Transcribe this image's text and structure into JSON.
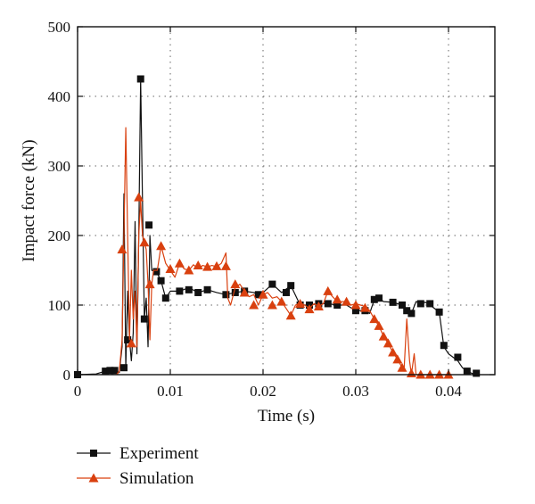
{
  "chart_data": {
    "type": "line",
    "xlabel": "Time (s)",
    "ylabel": "Impact force (kN)",
    "xlim": [
      0,
      0.045
    ],
    "ylim": [
      0,
      500
    ],
    "x_ticks": [
      0,
      0.01,
      0.02,
      0.03,
      0.04
    ],
    "x_tick_labels": [
      "0",
      "0.01",
      "0.02",
      "0.03",
      "0.04"
    ],
    "y_ticks": [
      0,
      100,
      200,
      300,
      400,
      500
    ],
    "y_tick_labels": [
      "0",
      "100",
      "200",
      "300",
      "400",
      "500"
    ],
    "grid": true,
    "legend_position": "bottom-left, below plot",
    "series": [
      {
        "name": "Experiment",
        "color": "#111111",
        "marker": "square",
        "line_points": [
          [
            0,
            0
          ],
          [
            0.002,
            1
          ],
          [
            0.003,
            5
          ],
          [
            0.0035,
            6
          ],
          [
            0.004,
            6
          ],
          [
            0.0045,
            3
          ],
          [
            0.0048,
            40
          ],
          [
            0.005,
            260
          ],
          [
            0.0052,
            10
          ],
          [
            0.0054,
            120
          ],
          [
            0.0056,
            50
          ],
          [
            0.0058,
            20
          ],
          [
            0.006,
            60
          ],
          [
            0.0062,
            220
          ],
          [
            0.0064,
            30
          ],
          [
            0.0066,
            200
          ],
          [
            0.0068,
            425
          ],
          [
            0.007,
            250
          ],
          [
            0.0072,
            80
          ],
          [
            0.0074,
            110
          ],
          [
            0.0076,
            40
          ],
          [
            0.0078,
            200
          ],
          [
            0.008,
            150
          ],
          [
            0.0085,
            148
          ],
          [
            0.009,
            135
          ],
          [
            0.0095,
            110
          ],
          [
            0.01,
            120
          ],
          [
            0.011,
            120
          ],
          [
            0.012,
            125
          ],
          [
            0.013,
            118
          ],
          [
            0.014,
            122
          ],
          [
            0.015,
            118
          ],
          [
            0.016,
            115
          ],
          [
            0.017,
            118
          ],
          [
            0.018,
            120
          ],
          [
            0.019,
            118
          ],
          [
            0.0195,
            115
          ],
          [
            0.02,
            118
          ],
          [
            0.021,
            130
          ],
          [
            0.022,
            118
          ],
          [
            0.023,
            128
          ],
          [
            0.024,
            100
          ],
          [
            0.025,
            100
          ],
          [
            0.026,
            102
          ],
          [
            0.027,
            102
          ],
          [
            0.028,
            100
          ],
          [
            0.029,
            100
          ],
          [
            0.03,
            92
          ],
          [
            0.031,
            92
          ],
          [
            0.0315,
            88
          ],
          [
            0.032,
            108
          ],
          [
            0.0325,
            110
          ],
          [
            0.033,
            105
          ],
          [
            0.034,
            104
          ],
          [
            0.035,
            100
          ],
          [
            0.0355,
            92
          ],
          [
            0.036,
            88
          ],
          [
            0.0365,
            105
          ],
          [
            0.037,
            102
          ],
          [
            0.0375,
            104
          ],
          [
            0.038,
            100
          ],
          [
            0.0385,
            95
          ],
          [
            0.039,
            90
          ],
          [
            0.0395,
            40
          ],
          [
            0.04,
            30
          ],
          [
            0.041,
            20
          ],
          [
            0.0415,
            10
          ],
          [
            0.042,
            5
          ],
          [
            0.0425,
            2
          ],
          [
            0.043,
            0
          ]
        ],
        "marker_points": [
          [
            0,
            0
          ],
          [
            0.003,
            5
          ],
          [
            0.0035,
            6
          ],
          [
            0.004,
            6
          ],
          [
            0.005,
            10
          ],
          [
            0.0054,
            50
          ],
          [
            0.0068,
            425
          ],
          [
            0.0072,
            80
          ],
          [
            0.0077,
            215
          ],
          [
            0.0085,
            148
          ],
          [
            0.009,
            135
          ],
          [
            0.0095,
            110
          ],
          [
            0.011,
            120
          ],
          [
            0.012,
            122
          ],
          [
            0.013,
            118
          ],
          [
            0.014,
            122
          ],
          [
            0.016,
            115
          ],
          [
            0.017,
            118
          ],
          [
            0.018,
            120
          ],
          [
            0.0195,
            115
          ],
          [
            0.021,
            130
          ],
          [
            0.0225,
            118
          ],
          [
            0.023,
            128
          ],
          [
            0.024,
            100
          ],
          [
            0.025,
            100
          ],
          [
            0.026,
            102
          ],
          [
            0.027,
            102
          ],
          [
            0.028,
            100
          ],
          [
            0.03,
            92
          ],
          [
            0.031,
            92
          ],
          [
            0.032,
            108
          ],
          [
            0.0325,
            110
          ],
          [
            0.034,
            104
          ],
          [
            0.035,
            100
          ],
          [
            0.0355,
            92
          ],
          [
            0.036,
            88
          ],
          [
            0.037,
            102
          ],
          [
            0.038,
            102
          ],
          [
            0.039,
            90
          ],
          [
            0.0395,
            42
          ],
          [
            0.041,
            25
          ],
          [
            0.042,
            5
          ],
          [
            0.043,
            2
          ]
        ]
      },
      {
        "name": "Simulation",
        "color": "#d9400f",
        "marker": "triangle",
        "line_points": [
          [
            0.0042,
            0
          ],
          [
            0.0045,
            5
          ],
          [
            0.0048,
            50
          ],
          [
            0.005,
            200
          ],
          [
            0.0052,
            355
          ],
          [
            0.0054,
            200
          ],
          [
            0.0056,
            50
          ],
          [
            0.0058,
            150
          ],
          [
            0.006,
            80
          ],
          [
            0.0062,
            120
          ],
          [
            0.0064,
            40
          ],
          [
            0.0066,
            200
          ],
          [
            0.0068,
            250
          ],
          [
            0.007,
            200
          ],
          [
            0.0072,
            190
          ],
          [
            0.0074,
            180
          ],
          [
            0.0076,
            130
          ],
          [
            0.0078,
            50
          ],
          [
            0.008,
            130
          ],
          [
            0.0082,
            150
          ],
          [
            0.0086,
            150
          ],
          [
            0.009,
            185
          ],
          [
            0.0095,
            160
          ],
          [
            0.01,
            150
          ],
          [
            0.0105,
            140
          ],
          [
            0.011,
            160
          ],
          [
            0.0115,
            152
          ],
          [
            0.012,
            150
          ],
          [
            0.0125,
            158
          ],
          [
            0.013,
            152
          ],
          [
            0.0135,
            157
          ],
          [
            0.014,
            155
          ],
          [
            0.0145,
            157
          ],
          [
            0.015,
            155
          ],
          [
            0.0155,
            160
          ],
          [
            0.016,
            175
          ],
          [
            0.0162,
            110
          ],
          [
            0.0165,
            100
          ],
          [
            0.017,
            125
          ],
          [
            0.0175,
            130
          ],
          [
            0.018,
            120
          ],
          [
            0.0185,
            112
          ],
          [
            0.019,
            115
          ],
          [
            0.0195,
            100
          ],
          [
            0.02,
            115
          ],
          [
            0.0205,
            118
          ],
          [
            0.021,
            110
          ],
          [
            0.0215,
            112
          ],
          [
            0.022,
            105
          ],
          [
            0.0225,
            95
          ],
          [
            0.023,
            85
          ],
          [
            0.0235,
            100
          ],
          [
            0.024,
            103
          ],
          [
            0.0245,
            100
          ],
          [
            0.025,
            95
          ],
          [
            0.0255,
            102
          ],
          [
            0.026,
            98
          ],
          [
            0.0265,
            102
          ],
          [
            0.027,
            120
          ],
          [
            0.0275,
            112
          ],
          [
            0.028,
            105
          ],
          [
            0.0285,
            105
          ],
          [
            0.029,
            105
          ],
          [
            0.0295,
            100
          ],
          [
            0.03,
            102
          ],
          [
            0.0305,
            100
          ],
          [
            0.031,
            98
          ],
          [
            0.0315,
            92
          ],
          [
            0.032,
            80
          ],
          [
            0.0325,
            70
          ],
          [
            0.033,
            55
          ],
          [
            0.0335,
            45
          ],
          [
            0.034,
            32
          ],
          [
            0.0345,
            22
          ],
          [
            0.035,
            10
          ],
          [
            0.0352,
            5
          ],
          [
            0.0355,
            80
          ],
          [
            0.0358,
            20
          ],
          [
            0.036,
            0
          ],
          [
            0.0363,
            30
          ],
          [
            0.0365,
            0
          ],
          [
            0.037,
            0
          ],
          [
            0.038,
            0
          ],
          [
            0.039,
            0
          ],
          [
            0.04,
            0
          ]
        ],
        "marker_points": [
          [
            0.0048,
            180
          ],
          [
            0.0058,
            45
          ],
          [
            0.0066,
            255
          ],
          [
            0.0072,
            190
          ],
          [
            0.0078,
            130
          ],
          [
            0.009,
            185
          ],
          [
            0.01,
            152
          ],
          [
            0.011,
            160
          ],
          [
            0.012,
            150
          ],
          [
            0.013,
            157
          ],
          [
            0.014,
            155
          ],
          [
            0.015,
            156
          ],
          [
            0.016,
            156
          ],
          [
            0.017,
            130
          ],
          [
            0.018,
            118
          ],
          [
            0.019,
            100
          ],
          [
            0.02,
            115
          ],
          [
            0.021,
            100
          ],
          [
            0.022,
            105
          ],
          [
            0.023,
            85
          ],
          [
            0.024,
            102
          ],
          [
            0.025,
            94
          ],
          [
            0.026,
            98
          ],
          [
            0.027,
            120
          ],
          [
            0.028,
            108
          ],
          [
            0.029,
            105
          ],
          [
            0.03,
            100
          ],
          [
            0.031,
            96
          ],
          [
            0.032,
            80
          ],
          [
            0.0325,
            70
          ],
          [
            0.033,
            55
          ],
          [
            0.0335,
            45
          ],
          [
            0.034,
            32
          ],
          [
            0.0345,
            22
          ],
          [
            0.035,
            10
          ],
          [
            0.036,
            2
          ],
          [
            0.037,
            0
          ],
          [
            0.038,
            0
          ],
          [
            0.039,
            0
          ],
          [
            0.04,
            0
          ]
        ]
      }
    ]
  }
}
